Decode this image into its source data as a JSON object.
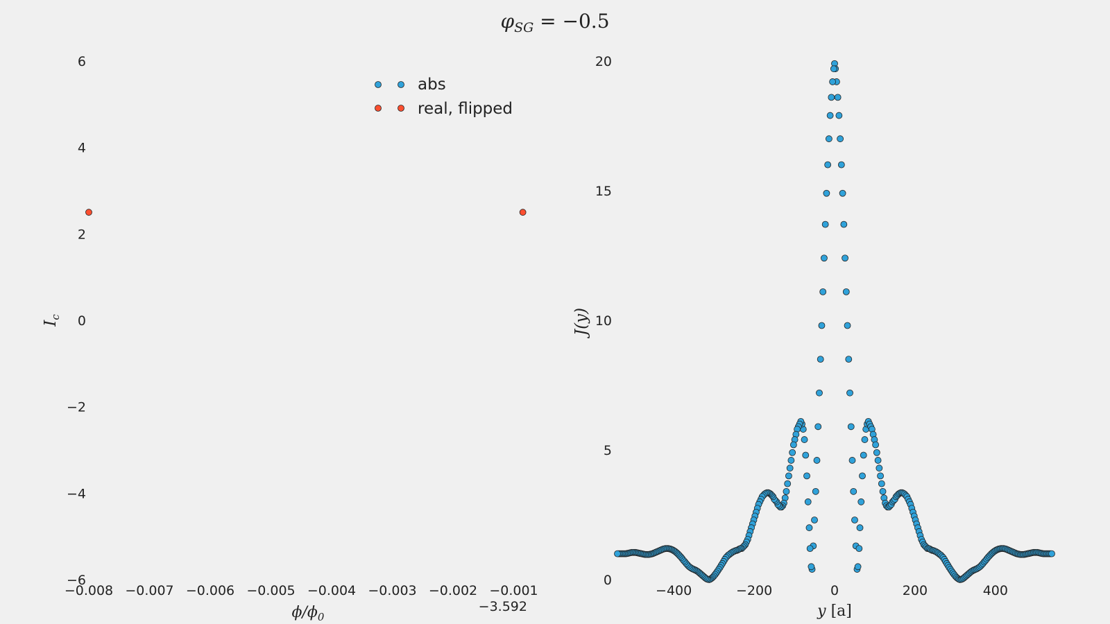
{
  "figure": {
    "title": "φ_SG = −0.5",
    "title_main": "φ",
    "title_sub": "SG",
    "title_rest": " = −0.5"
  },
  "colors": {
    "abs": "#30a2da",
    "real": "#fc4f30",
    "background": "#f0f0f0",
    "edge": "#222222"
  },
  "chart_data": [
    {
      "type": "scatter",
      "xlabel": "ϕ/ϕ₀",
      "xlabel_main": "ϕ/ϕ",
      "xlabel_sub": "0",
      "ylabel": "I_c",
      "ylabel_main": "I",
      "ylabel_sub": "c",
      "xlim": [
        -0.008,
        -0.0008
      ],
      "ylim": [
        -6,
        6
      ],
      "x_offset_label": "−3.592",
      "x_ticks": [
        -0.008,
        -0.007,
        -0.006,
        -0.005,
        -0.004,
        -0.003,
        -0.002,
        -0.001
      ],
      "x_tick_labels": [
        "−0.008",
        "−0.007",
        "−0.006",
        "−0.005",
        "−0.004",
        "−0.003",
        "−0.002",
        "−0.001"
      ],
      "y_ticks": [
        6,
        4,
        2,
        0,
        -2,
        -4,
        -6
      ],
      "y_tick_labels": [
        "6",
        "4",
        "2",
        "0",
        "−2",
        "−4",
        "−6"
      ],
      "legend": {
        "position": "upper-center",
        "entries": [
          "abs",
          "real, flipped"
        ]
      },
      "series": [
        {
          "name": "abs",
          "color": "#30a2da",
          "points": []
        },
        {
          "name": "real, flipped",
          "color": "#fc4f30",
          "points": [
            [
              -0.008,
              2.5
            ],
            [
              -0.00085,
              2.5
            ]
          ]
        }
      ]
    },
    {
      "type": "scatter",
      "xlabel": "y [a]",
      "xlabel_main": "y",
      "xlabel_rest": " [a]",
      "ylabel": "J(y)",
      "xlim": [
        -540,
        540
      ],
      "ylim": [
        0,
        20
      ],
      "x_ticks": [
        -400,
        -200,
        0,
        200,
        400
      ],
      "x_tick_labels": [
        "−400",
        "−200",
        "0",
        "200",
        "400"
      ],
      "y_ticks": [
        0,
        5,
        10,
        15,
        20
      ],
      "y_tick_labels": [
        "0",
        "5",
        "10",
        "15",
        "20"
      ],
      "series": [
        {
          "name": "J(y)",
          "color": "#30a2da",
          "symmetric": true,
          "center": {
            "x": 0,
            "y": 19.9
          },
          "half_points": [
            [
              2,
              19.7
            ],
            [
              5,
              19.2
            ],
            [
              8,
              18.6
            ],
            [
              11,
              17.9
            ],
            [
              14,
              17.0
            ],
            [
              17,
              16.0
            ],
            [
              20,
              14.9
            ],
            [
              23,
              13.7
            ],
            [
              26,
              12.4
            ],
            [
              29,
              11.1
            ],
            [
              32,
              9.8
            ],
            [
              35,
              8.5
            ],
            [
              38,
              7.2
            ],
            [
              41,
              5.9
            ],
            [
              44,
              4.6
            ],
            [
              47,
              3.4
            ],
            [
              50,
              2.3
            ],
            [
              53,
              1.3
            ],
            [
              56,
              0.4
            ],
            [
              58,
              0.5
            ],
            [
              61,
              1.2
            ],
            [
              63,
              2.0
            ],
            [
              66,
              3.0
            ],
            [
              69,
              4.0
            ],
            [
              72,
              4.8
            ],
            [
              75,
              5.4
            ],
            [
              78,
              5.8
            ],
            [
              81,
              6.0
            ],
            [
              84,
              6.1
            ],
            [
              87,
              6.0
            ],
            [
              90,
              5.9
            ],
            [
              93,
              5.8
            ],
            [
              96,
              5.6
            ],
            [
              99,
              5.4
            ],
            [
              102,
              5.2
            ],
            [
              105,
              4.9
            ],
            [
              108,
              4.6
            ],
            [
              111,
              4.3
            ],
            [
              114,
              4.0
            ],
            [
              117,
              3.7
            ],
            [
              120,
              3.4
            ],
            [
              123,
              3.15
            ],
            [
              126,
              2.95
            ],
            [
              129,
              2.85
            ],
            [
              132,
              2.8
            ],
            [
              135,
              2.8
            ],
            [
              138,
              2.85
            ],
            [
              141,
              2.9
            ],
            [
              144,
              3.0
            ],
            [
              147,
              3.05
            ],
            [
              150,
              3.1
            ],
            [
              153,
              3.2
            ],
            [
              156,
              3.25
            ],
            [
              159,
              3.3
            ],
            [
              162,
              3.33
            ],
            [
              165,
              3.35
            ],
            [
              168,
              3.35
            ],
            [
              171,
              3.33
            ],
            [
              174,
              3.3
            ],
            [
              177,
              3.25
            ],
            [
              180,
              3.2
            ],
            [
              183,
              3.1
            ],
            [
              186,
              3.0
            ],
            [
              189,
              2.9
            ],
            [
              192,
              2.75
            ],
            [
              195,
              2.6
            ],
            [
              198,
              2.45
            ],
            [
              201,
              2.3
            ],
            [
              204,
              2.15
            ],
            [
              207,
              2.0
            ],
            [
              210,
              1.85
            ],
            [
              213,
              1.7
            ],
            [
              216,
              1.55
            ],
            [
              219,
              1.45
            ],
            [
              222,
              1.35
            ],
            [
              225,
              1.3
            ],
            [
              228,
              1.25
            ],
            [
              231,
              1.2
            ],
            [
              234,
              1.2
            ],
            [
              237,
              1.18
            ],
            [
              240,
              1.15
            ],
            [
              243,
              1.13
            ],
            [
              246,
              1.12
            ],
            [
              249,
              1.1
            ],
            [
              252,
              1.08
            ],
            [
              255,
              1.05
            ],
            [
              258,
              1.02
            ],
            [
              261,
              0.98
            ],
            [
              264,
              0.95
            ],
            [
              267,
              0.9
            ],
            [
              270,
              0.85
            ],
            [
              273,
              0.78
            ],
            [
              276,
              0.7
            ],
            [
              279,
              0.62
            ],
            [
              282,
              0.55
            ],
            [
              285,
              0.47
            ],
            [
              288,
              0.4
            ],
            [
              291,
              0.33
            ],
            [
              294,
              0.26
            ],
            [
              297,
              0.2
            ],
            [
              300,
              0.14
            ],
            [
              303,
              0.09
            ],
            [
              306,
              0.05
            ],
            [
              309,
              0.02
            ],
            [
              312,
              0.0
            ],
            [
              315,
              0.01
            ],
            [
              318,
              0.03
            ],
            [
              321,
              0.06
            ],
            [
              324,
              0.1
            ],
            [
              327,
              0.14
            ],
            [
              330,
              0.18
            ],
            [
              333,
              0.22
            ],
            [
              336,
              0.26
            ],
            [
              339,
              0.3
            ],
            [
              342,
              0.33
            ],
            [
              345,
              0.36
            ],
            [
              348,
              0.38
            ],
            [
              351,
              0.4
            ],
            [
              354,
              0.42
            ],
            [
              357,
              0.45
            ],
            [
              360,
              0.48
            ],
            [
              363,
              0.52
            ],
            [
              366,
              0.57
            ],
            [
              369,
              0.62
            ],
            [
              372,
              0.68
            ],
            [
              375,
              0.73
            ],
            [
              378,
              0.79
            ],
            [
              381,
              0.85
            ],
            [
              384,
              0.9
            ],
            [
              387,
              0.95
            ],
            [
              390,
              1.0
            ],
            [
              393,
              1.04
            ],
            [
              396,
              1.08
            ],
            [
              399,
              1.11
            ],
            [
              402,
              1.14
            ],
            [
              405,
              1.16
            ],
            [
              408,
              1.18
            ],
            [
              411,
              1.19
            ],
            [
              414,
              1.2
            ],
            [
              417,
              1.2
            ],
            [
              420,
              1.2
            ],
            [
              423,
              1.19
            ],
            [
              426,
              1.18
            ],
            [
              429,
              1.16
            ],
            [
              432,
              1.14
            ],
            [
              435,
              1.12
            ],
            [
              438,
              1.1
            ],
            [
              441,
              1.08
            ],
            [
              444,
              1.06
            ],
            [
              447,
              1.04
            ],
            [
              450,
              1.02
            ],
            [
              453,
              1.0
            ],
            [
              456,
              0.99
            ],
            [
              459,
              0.98
            ],
            [
              462,
              0.97
            ],
            [
              465,
              0.97
            ],
            [
              468,
              0.97
            ],
            [
              471,
              0.97
            ],
            [
              474,
              0.98
            ],
            [
              477,
              0.99
            ],
            [
              480,
              1.0
            ],
            [
              483,
              1.01
            ],
            [
              486,
              1.02
            ],
            [
              489,
              1.03
            ],
            [
              492,
              1.04
            ],
            [
              495,
              1.05
            ],
            [
              498,
              1.05
            ],
            [
              501,
              1.05
            ],
            [
              504,
              1.05
            ],
            [
              507,
              1.04
            ],
            [
              510,
              1.03
            ],
            [
              513,
              1.02
            ],
            [
              516,
              1.01
            ],
            [
              519,
              1.0
            ],
            [
              522,
              1.0
            ],
            [
              525,
              1.0
            ],
            [
              528,
              1.0
            ],
            [
              531,
              1.0
            ],
            [
              534,
              1.0
            ],
            [
              537,
              1.0
            ],
            [
              540,
              1.0
            ]
          ]
        }
      ]
    }
  ]
}
